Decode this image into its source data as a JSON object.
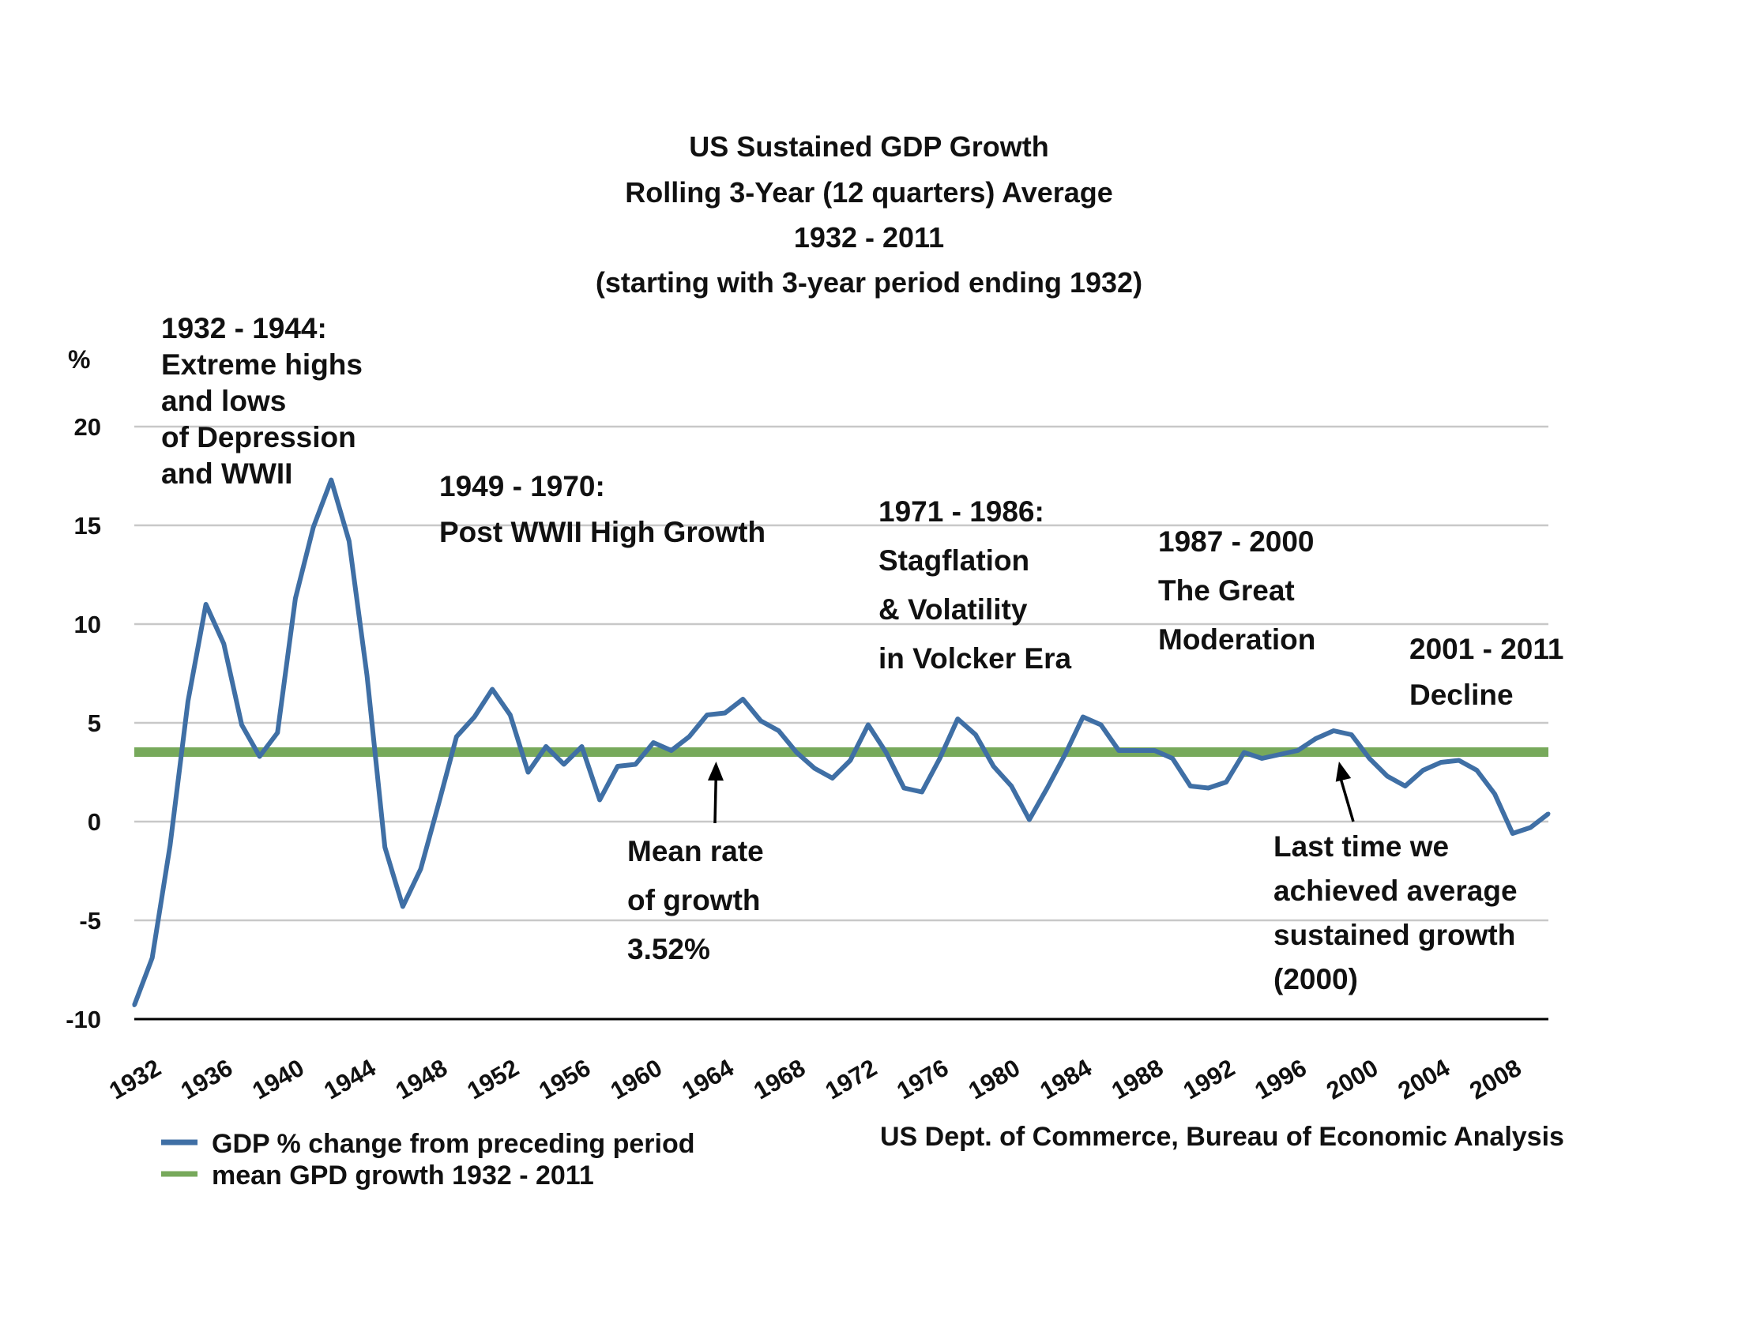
{
  "chart_data": {
    "type": "line",
    "title_lines": [
      "US Sustained GDP Growth",
      "Rolling 3-Year (12 quarters) Average",
      "1932 - 2011",
      "(starting with 3-year period ending 1932)"
    ],
    "ylabel": "%",
    "xlabel": "",
    "ylim": [
      -10,
      20
    ],
    "xlim": [
      1932,
      2011
    ],
    "grid": true,
    "y_ticks": [
      "20",
      "15",
      "10",
      "5",
      "0",
      "-5",
      "-10"
    ],
    "y_tick_values": [
      20,
      15,
      10,
      5,
      0,
      -5,
      -10
    ],
    "x_ticks": [
      "1932",
      "1936",
      "1940",
      "1944",
      "1948",
      "1952",
      "1956",
      "1960",
      "1964",
      "1968",
      "1972",
      "1976",
      "1980",
      "1984",
      "1988",
      "1992",
      "1996",
      "2000",
      "2004",
      "2008"
    ],
    "x_tick_values": [
      1932,
      1936,
      1940,
      1944,
      1948,
      1952,
      1956,
      1960,
      1964,
      1968,
      1972,
      1976,
      1980,
      1984,
      1988,
      1992,
      1996,
      2000,
      2004,
      2008
    ],
    "series": [
      {
        "name": "GDP % change from preceding period",
        "color": "#3F6FA5",
        "x": [
          1932,
          1933,
          1934,
          1935,
          1936,
          1937,
          1938,
          1939,
          1940,
          1941,
          1942,
          1943,
          1944,
          1945,
          1946,
          1947,
          1948,
          1949,
          1950,
          1951,
          1952,
          1953,
          1954,
          1955,
          1956,
          1957,
          1958,
          1959,
          1960,
          1961,
          1962,
          1963,
          1964,
          1965,
          1966,
          1967,
          1968,
          1969,
          1970,
          1971,
          1972,
          1973,
          1974,
          1975,
          1976,
          1977,
          1978,
          1979,
          1980,
          1981,
          1982,
          1983,
          1984,
          1985,
          1986,
          1987,
          1988,
          1989,
          1990,
          1991,
          1992,
          1993,
          1994,
          1995,
          1996,
          1997,
          1998,
          1999,
          2000,
          2001,
          2002,
          2003,
          2004,
          2005,
          2006,
          2007,
          2008,
          2009,
          2010,
          2011
        ],
        "values": [
          -9.3,
          -6.9,
          -1.2,
          6.1,
          11.0,
          9.0,
          4.9,
          3.3,
          4.5,
          11.3,
          14.9,
          17.3,
          14.2,
          7.4,
          -1.3,
          -4.3,
          -2.4,
          0.9,
          4.3,
          5.3,
          6.7,
          5.4,
          2.5,
          3.8,
          2.9,
          3.8,
          1.1,
          2.8,
          2.9,
          4.0,
          3.6,
          4.3,
          5.4,
          5.5,
          6.2,
          5.1,
          4.6,
          3.5,
          2.7,
          2.2,
          3.1,
          4.9,
          3.5,
          1.7,
          1.5,
          3.2,
          5.2,
          4.4,
          2.8,
          1.8,
          0.1,
          1.7,
          3.4,
          5.3,
          4.9,
          3.6,
          3.6,
          3.6,
          3.2,
          1.8,
          1.7,
          2.0,
          3.5,
          3.2,
          3.4,
          3.6,
          4.2,
          4.6,
          4.4,
          3.2,
          2.3,
          1.8,
          2.6,
          3.0,
          3.1,
          2.6,
          1.4,
          -0.6,
          -0.3,
          0.4
        ]
      },
      {
        "name": "mean GPD growth 1932 - 2011",
        "color": "#77A95B",
        "x": [
          1932,
          2011
        ],
        "values": [
          3.52,
          3.52
        ]
      }
    ],
    "annotations": [
      {
        "key": "depression",
        "lines": [
          "1932 - 1944:",
          "Extreme highs",
          "and lows",
          "of Depression",
          "and WWII"
        ]
      },
      {
        "key": "post_wwii",
        "lines": [
          "1949 - 1970:",
          "Post WWII High Growth"
        ]
      },
      {
        "key": "stagflation",
        "lines": [
          "1971 - 1986:",
          "Stagflation",
          "& Volatility",
          "in Volcker Era"
        ]
      },
      {
        "key": "moderation",
        "lines": [
          "1987 - 2000",
          "The Great",
          "Moderation"
        ]
      },
      {
        "key": "decline",
        "lines": [
          "2001 - 2011",
          "Decline"
        ]
      },
      {
        "key": "mean_rate",
        "lines": [
          "Mean rate",
          "of growth",
          "3.52%"
        ],
        "arrow_to": {
          "x": 1964.5,
          "y": 3.52
        }
      },
      {
        "key": "last_time",
        "lines": [
          "Last time we",
          "achieved average",
          "sustained growth",
          "(2000)"
        ],
        "arrow_to": {
          "x": 1999.3,
          "y": 3.52
        }
      }
    ],
    "legend_placement": "bottom-left",
    "source": "US Dept. of Commerce, Bureau of Economic Analysis",
    "gridline_color": "#C8C8C8",
    "axis_color": "#000000"
  }
}
